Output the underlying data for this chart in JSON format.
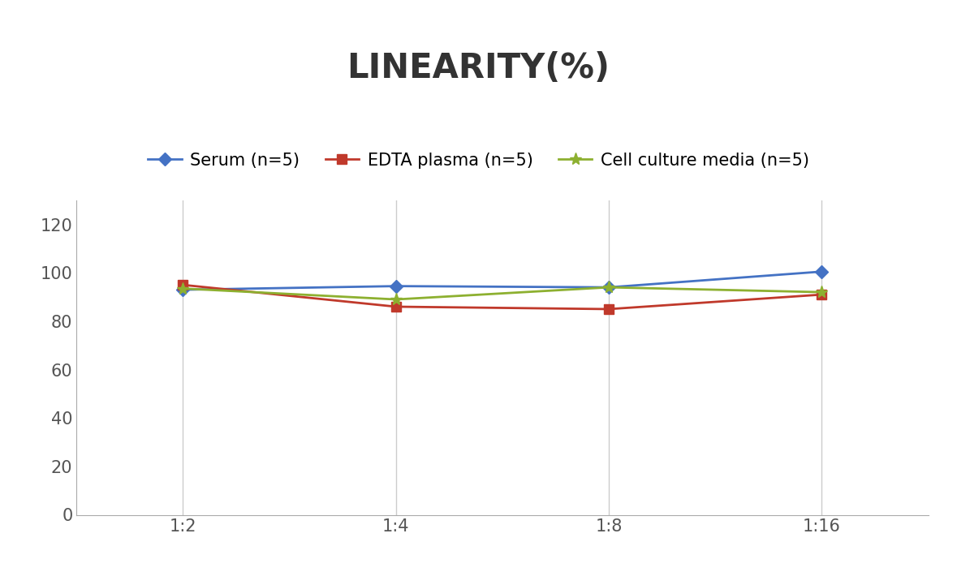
{
  "title": "LINEARITY(%)",
  "title_fontsize": 30,
  "title_fontweight": "bold",
  "x_labels": [
    "1:2",
    "1:4",
    "1:8",
    "1:16"
  ],
  "x_positions": [
    1,
    2,
    3,
    4
  ],
  "series": [
    {
      "label": "Serum (n=5)",
      "values": [
        93,
        94.5,
        94,
        100.5
      ],
      "color": "#4472C4",
      "marker": "D",
      "markersize": 8,
      "linewidth": 2
    },
    {
      "label": "EDTA plasma (n=5)",
      "values": [
        95,
        86,
        85,
        91
      ],
      "color": "#C0392B",
      "marker": "s",
      "markersize": 8,
      "linewidth": 2
    },
    {
      "label": "Cell culture media (n=5)",
      "values": [
        93.5,
        89,
        94,
        92
      ],
      "color": "#8DB030",
      "marker": "*",
      "markersize": 11,
      "linewidth": 2
    }
  ],
  "ylim": [
    0,
    130
  ],
  "yticks": [
    0,
    20,
    40,
    60,
    80,
    100,
    120
  ],
  "grid_color": "#CCCCCC",
  "background_color": "#FFFFFF",
  "legend_fontsize": 15,
  "tick_fontsize": 15
}
